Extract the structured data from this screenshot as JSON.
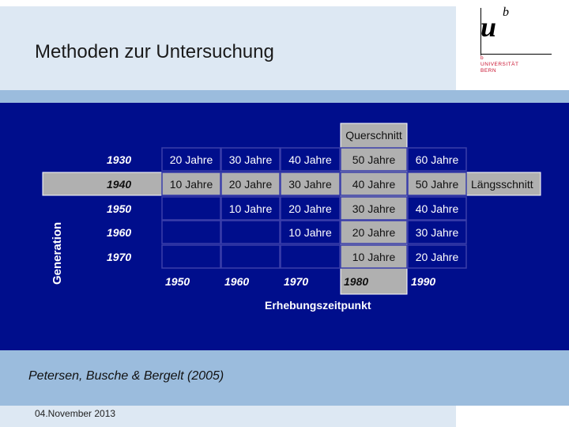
{
  "slide": {
    "title": "Methoden zur Untersuchung",
    "citation": "Petersen, Busche & Bergelt (2005)",
    "date": "04.November 2013"
  },
  "logo": {
    "mark_u": "u",
    "mark_b": "b",
    "line1": "b",
    "line2": "UNIVERSITÄT",
    "line3": "BERN"
  },
  "diagram": {
    "y_axis_label": "Generation",
    "x_axis_label": "Erhebungszeitpunkt",
    "cross_section_label": "Querschnitt",
    "longitudinal_label": "Längsschnitt",
    "generations": [
      "1930",
      "1940",
      "1950",
      "1960",
      "1970"
    ],
    "survey_years": [
      "1950",
      "1960",
      "1970",
      "1980",
      "1990"
    ],
    "cells": [
      [
        "20 Jahre",
        "30 Jahre",
        "40 Jahre",
        "50 Jahre",
        "60 Jahre"
      ],
      [
        "10 Jahre",
        "20 Jahre",
        "30 Jahre",
        "40 Jahre",
        "50 Jahre"
      ],
      [
        "",
        "10 Jahre",
        "20 Jahre",
        "30 Jahre",
        "40 Jahre"
      ],
      [
        "",
        "",
        "10 Jahre",
        "20 Jahre",
        "30 Jahre"
      ],
      [
        "",
        "",
        "",
        "10 Jahre",
        "20 Jahre"
      ]
    ],
    "highlight_row": 1,
    "highlight_col": 3,
    "colors": {
      "panel": "#000e8c",
      "highlight": "#b0b0b0",
      "cell_border": "#3a3faa",
      "text": "#ffffff",
      "highlight_text": "#111111"
    }
  }
}
